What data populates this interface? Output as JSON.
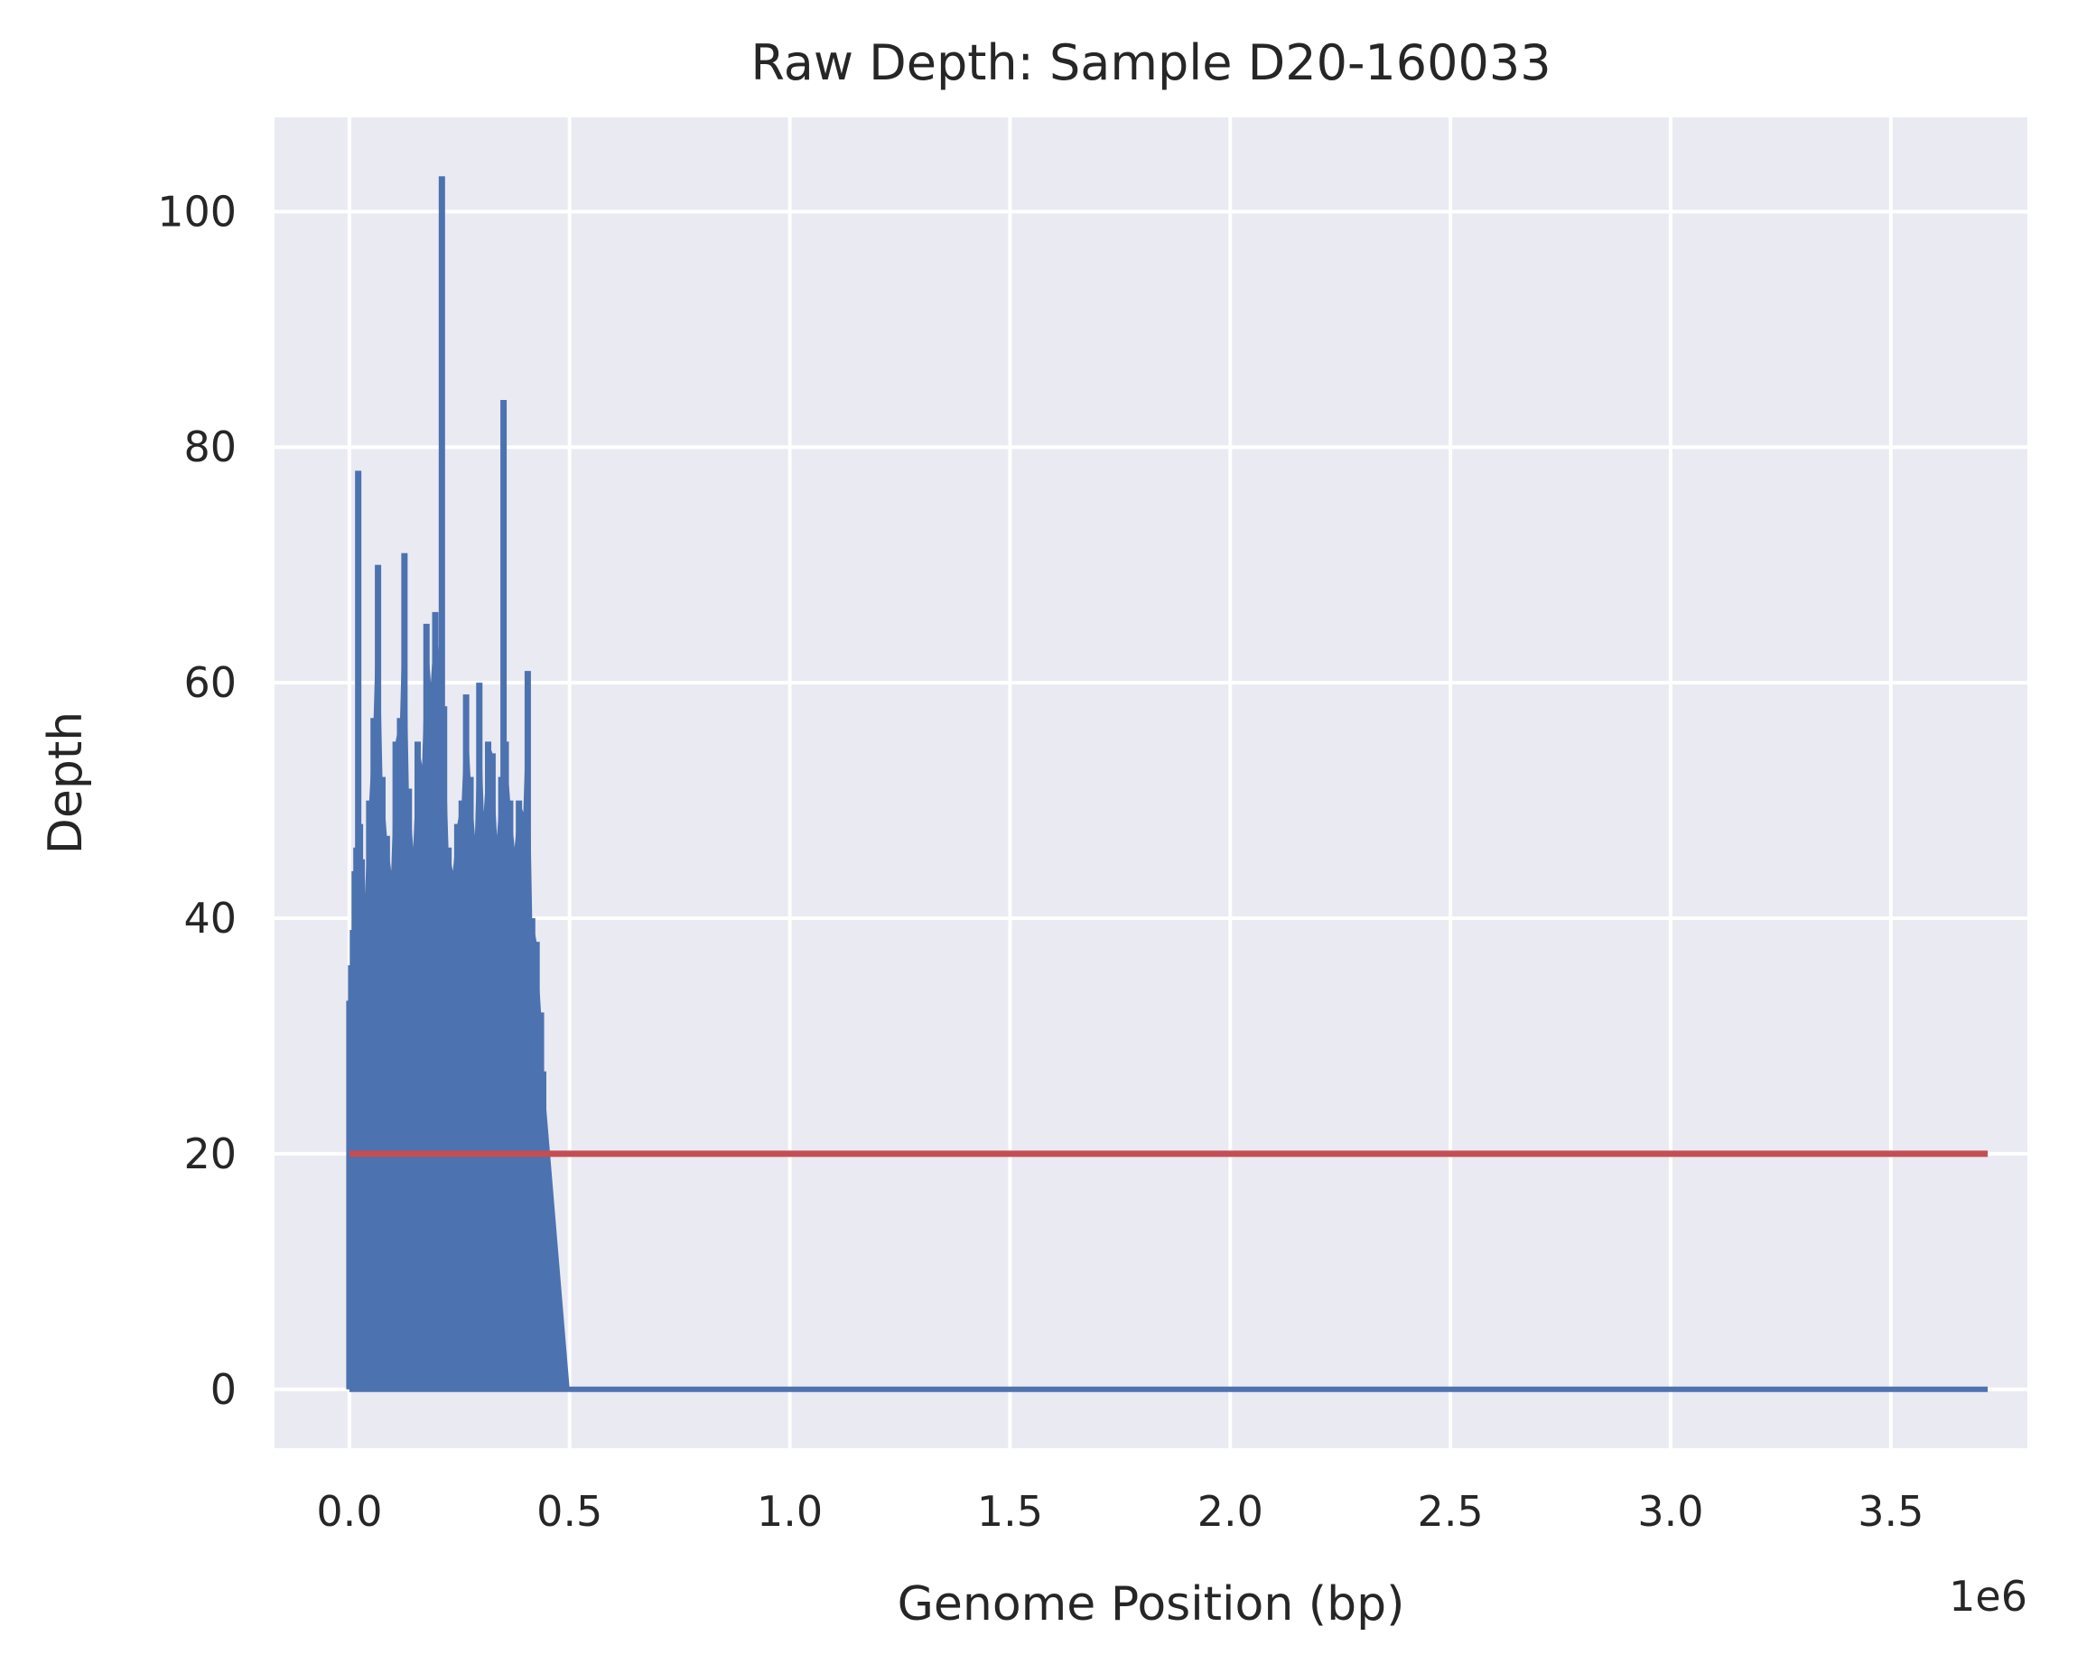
{
  "chart_data": {
    "type": "line",
    "title": "Raw Depth: Sample D20-160033",
    "xlabel": "Genome Position (bp)",
    "ylabel": "Depth",
    "x_offset_label": "1e6",
    "xlim": [
      -0.17,
      3.81
    ],
    "ylim": [
      -5,
      108
    ],
    "x_ticks": [
      0.0,
      0.5,
      1.0,
      1.5,
      2.0,
      2.5,
      3.0,
      3.5
    ],
    "x_tick_labels": [
      "0.0",
      "0.5",
      "1.0",
      "1.5",
      "2.0",
      "2.5",
      "3.0",
      "3.5"
    ],
    "y_ticks": [
      0,
      20,
      40,
      60,
      80,
      100
    ],
    "y_tick_labels": [
      "0",
      "20",
      "40",
      "60",
      "80",
      "100"
    ],
    "grid": true,
    "background": "#eaeaf2",
    "series": [
      {
        "color": "#4c72b0",
        "x": [
          0.0,
          0.004,
          0.008,
          0.012,
          0.016,
          0.02,
          0.024,
          0.028,
          0.035,
          0.045,
          0.055,
          0.065,
          0.075,
          0.085,
          0.095,
          0.105,
          0.115,
          0.125,
          0.135,
          0.145,
          0.155,
          0.165,
          0.175,
          0.185,
          0.195,
          0.205,
          0.21,
          0.215,
          0.225,
          0.235,
          0.245,
          0.255,
          0.265,
          0.275,
          0.285,
          0.295,
          0.305,
          0.315,
          0.325,
          0.335,
          0.345,
          0.35,
          0.355,
          0.365,
          0.375,
          0.385,
          0.395,
          0.405,
          0.415,
          0.425,
          0.435,
          0.44,
          0.5,
          1.0,
          1.5,
          2.0,
          2.5,
          3.0,
          3.5,
          3.72
        ],
        "y": [
          33,
          36,
          39,
          44,
          46,
          78,
          48,
          45,
          42,
          50,
          57,
          70,
          52,
          47,
          44,
          55,
          57,
          71,
          51,
          46,
          55,
          53,
          65,
          60,
          66,
          62,
          103,
          58,
          46,
          44,
          48,
          50,
          59,
          52,
          47,
          60,
          49,
          55,
          54,
          47,
          52,
          84,
          55,
          50,
          46,
          50,
          49,
          61,
          40,
          38,
          32,
          27,
          0,
          0,
          0,
          0,
          0,
          0,
          0,
          0
        ],
        "ymin": [
          0,
          0,
          0,
          0,
          0,
          0,
          0,
          0,
          0,
          0,
          0,
          0,
          0,
          0,
          0,
          0,
          0,
          0,
          0,
          0,
          0,
          0,
          0,
          0,
          0,
          0,
          0,
          0,
          0,
          0,
          0,
          0,
          0,
          0,
          0,
          0,
          0,
          0,
          0,
          0,
          0,
          0,
          0,
          0,
          0,
          0,
          0,
          0,
          0,
          0,
          0,
          0,
          0,
          0,
          0,
          0,
          0,
          0,
          0,
          0
        ]
      },
      {
        "color": "#c44e52",
        "x": [
          0.0,
          3.72
        ],
        "y": [
          20,
          20
        ]
      }
    ]
  }
}
